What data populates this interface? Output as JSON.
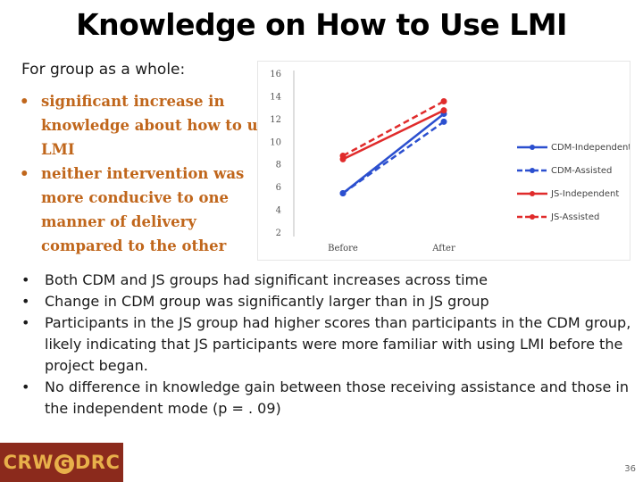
{
  "slide": {
    "title": "Knowledge on How to Use LMI",
    "intro": "For group as a whole:",
    "findings": [
      "significant increase in knowledge about how to use LMI",
      "neither intervention was more conducive to one manner of delivery compared to the other"
    ],
    "bullets": [
      "Both CDM and JS groups had significant increases across time",
      "Change in CDM group was significantly larger than in JS group",
      "Participants in the JS group had higher scores than participants in the CDM group, likely indicating that JS participants were more familiar with using LMI before the project began.",
      "No difference in knowledge gain between those receiving assistance and those in the independent mode (p = . 09)"
    ],
    "logo": {
      "part1": "CRW",
      "g": "G",
      "part2": "DRC"
    },
    "page_number": "36"
  },
  "colors": {
    "cdm": "#2b4fcf",
    "js": "#e02b2b",
    "finding_text": "#c0661b",
    "logo_bg": "#8b2a1c",
    "logo_fg": "#e8b04a"
  },
  "chart_data": {
    "type": "line",
    "title": "",
    "xlabel": "",
    "ylabel": "",
    "categories": [
      "Before",
      "After"
    ],
    "ylim": [
      2,
      16
    ],
    "yticks": [
      2,
      4,
      6,
      8,
      10,
      12,
      14,
      16
    ],
    "legend_position": "right",
    "series": [
      {
        "name": "CDM-Independent",
        "values": [
          5.5,
          12.5
        ],
        "color": "#2b4fcf",
        "dash": "solid"
      },
      {
        "name": "CDM-Assisted",
        "values": [
          5.5,
          11.8
        ],
        "color": "#2b4fcf",
        "dash": "dashed"
      },
      {
        "name": "JS-Independent",
        "values": [
          8.5,
          12.8
        ],
        "color": "#e02b2b",
        "dash": "solid"
      },
      {
        "name": "JS-Assisted",
        "values": [
          8.8,
          13.6
        ],
        "color": "#e02b2b",
        "dash": "dashed"
      }
    ]
  }
}
